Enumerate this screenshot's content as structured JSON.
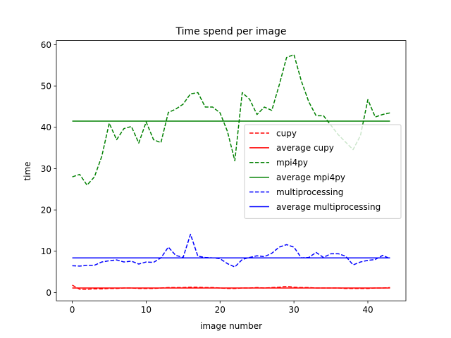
{
  "chart_data": {
    "type": "line",
    "title": "Time spend per image",
    "xlabel": "image number",
    "ylabel": "time",
    "xlim": [
      -2.15,
      45.15
    ],
    "ylim": [
      -2.0,
      61.0
    ],
    "xticks": [
      0,
      10,
      20,
      30,
      40
    ],
    "yticks": [
      0,
      10,
      20,
      30,
      40,
      50,
      60
    ],
    "grid": false,
    "legend_position": "center-right",
    "x": [
      0,
      1,
      2,
      3,
      4,
      5,
      6,
      7,
      8,
      9,
      10,
      11,
      12,
      13,
      14,
      15,
      16,
      17,
      18,
      19,
      20,
      21,
      22,
      23,
      24,
      25,
      26,
      27,
      28,
      29,
      30,
      31,
      32,
      33,
      34,
      35,
      36,
      37,
      38,
      39,
      40,
      41,
      42,
      43
    ],
    "series": [
      {
        "name": "cupy",
        "color": "#ff0000",
        "dash": true,
        "values": [
          1.8,
          0.8,
          0.8,
          0.9,
          0.9,
          1.0,
          1.0,
          1.1,
          1.1,
          1.0,
          1.0,
          1.0,
          1.1,
          1.2,
          1.2,
          1.2,
          1.3,
          1.3,
          1.2,
          1.2,
          1.1,
          1.0,
          1.0,
          1.1,
          1.1,
          1.2,
          1.1,
          1.2,
          1.3,
          1.5,
          1.3,
          1.2,
          1.2,
          1.1,
          1.1,
          1.1,
          1.1,
          1.0,
          1.0,
          1.0,
          1.0,
          1.1,
          1.1,
          1.2
        ]
      },
      {
        "name": "average cupy",
        "color": "#ff0000",
        "dash": false,
        "values": [
          1.1,
          1.1,
          1.1,
          1.1,
          1.1,
          1.1,
          1.1,
          1.1,
          1.1,
          1.1,
          1.1,
          1.1,
          1.1,
          1.1,
          1.1,
          1.1,
          1.1,
          1.1,
          1.1,
          1.1,
          1.1,
          1.1,
          1.1,
          1.1,
          1.1,
          1.1,
          1.1,
          1.1,
          1.1,
          1.1,
          1.1,
          1.1,
          1.1,
          1.1,
          1.1,
          1.1,
          1.1,
          1.1,
          1.1,
          1.1,
          1.1,
          1.1,
          1.1,
          1.1
        ]
      },
      {
        "name": "mpi4py",
        "color": "#008000",
        "dash": true,
        "values": [
          28.0,
          28.6,
          26.0,
          28.0,
          33.0,
          41.0,
          37.0,
          39.7,
          40.2,
          36.2,
          41.3,
          37.0,
          36.3,
          43.6,
          44.4,
          45.6,
          48.1,
          48.4,
          44.9,
          44.9,
          43.5,
          39.0,
          31.9,
          48.4,
          46.8,
          43.1,
          44.9,
          44.1,
          50.2,
          56.9,
          57.6,
          51.2,
          46.2,
          42.8,
          42.8,
          40.5,
          38.2,
          36.4,
          34.6,
          38.0,
          46.7,
          42.5,
          43.1,
          43.5
        ]
      },
      {
        "name": "average mpi4py",
        "color": "#008000",
        "dash": false,
        "values": [
          41.5,
          41.5,
          41.5,
          41.5,
          41.5,
          41.5,
          41.5,
          41.5,
          41.5,
          41.5,
          41.5,
          41.5,
          41.5,
          41.5,
          41.5,
          41.5,
          41.5,
          41.5,
          41.5,
          41.5,
          41.5,
          41.5,
          41.5,
          41.5,
          41.5,
          41.5,
          41.5,
          41.5,
          41.5,
          41.5,
          41.5,
          41.5,
          41.5,
          41.5,
          41.5,
          41.5,
          41.5,
          41.5,
          41.5,
          41.5,
          41.5,
          41.5,
          41.5,
          41.5
        ]
      },
      {
        "name": "multiprocessing",
        "color": "#0000ff",
        "dash": true,
        "values": [
          6.5,
          6.4,
          6.6,
          6.6,
          7.4,
          7.7,
          7.9,
          7.4,
          7.6,
          6.9,
          7.4,
          7.3,
          8.4,
          11.0,
          9.0,
          8.5,
          14.1,
          8.8,
          8.5,
          8.4,
          8.2,
          7.0,
          6.2,
          8.0,
          8.5,
          8.9,
          8.7,
          9.5,
          11.0,
          11.6,
          11.0,
          8.4,
          8.5,
          9.7,
          8.5,
          9.4,
          9.4,
          8.8,
          6.7,
          7.4,
          7.8,
          8.0,
          9.0,
          8.2
        ]
      },
      {
        "name": "average multiprocessing",
        "color": "#0000ff",
        "dash": false,
        "values": [
          8.4,
          8.4,
          8.4,
          8.4,
          8.4,
          8.4,
          8.4,
          8.4,
          8.4,
          8.4,
          8.4,
          8.4,
          8.4,
          8.4,
          8.4,
          8.4,
          8.4,
          8.4,
          8.4,
          8.4,
          8.4,
          8.4,
          8.4,
          8.4,
          8.4,
          8.4,
          8.4,
          8.4,
          8.4,
          8.4,
          8.4,
          8.4,
          8.4,
          8.4,
          8.4,
          8.4,
          8.4,
          8.4,
          8.4,
          8.4,
          8.4,
          8.4,
          8.4,
          8.4
        ]
      }
    ]
  }
}
